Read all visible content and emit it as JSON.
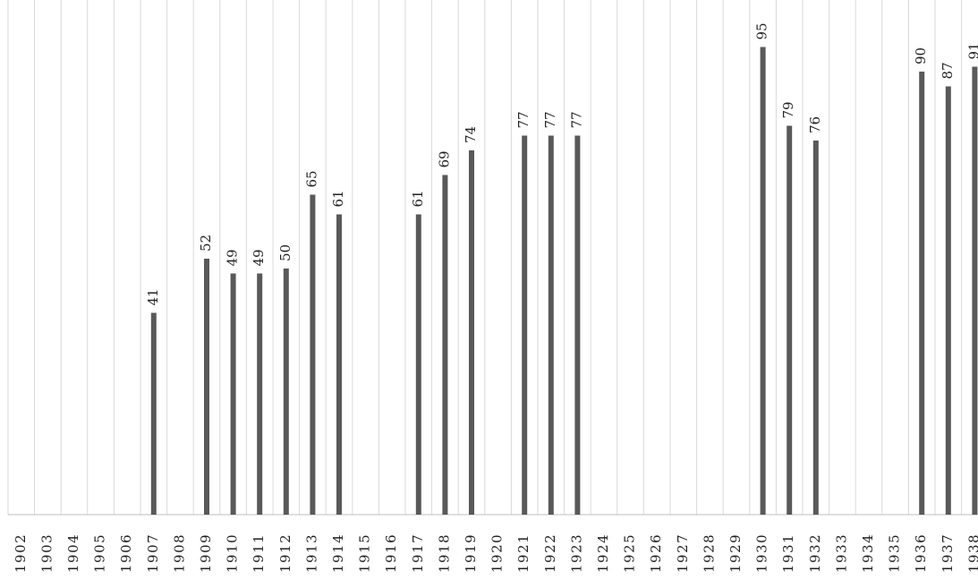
{
  "chart_data": {
    "type": "bar",
    "title": "",
    "xlabel": "",
    "ylabel": "",
    "grid": true,
    "legend": "none",
    "ylim": [
      0,
      100
    ],
    "categories": [
      "1902",
      "1903",
      "1904",
      "1905",
      "1906",
      "1907",
      "1908",
      "1909",
      "1910",
      "1911",
      "1912",
      "1913",
      "1914",
      "1915",
      "1916",
      "1917",
      "1918",
      "1919",
      "1920",
      "1921",
      "1922",
      "1923",
      "1924",
      "1925",
      "1926",
      "1927",
      "1928",
      "1929",
      "1930",
      "1931",
      "1932",
      "1933",
      "1934",
      "1935",
      "1936",
      "1937",
      "1938"
    ],
    "values": [
      null,
      null,
      null,
      null,
      null,
      41,
      null,
      52,
      49,
      49,
      50,
      65,
      61,
      null,
      null,
      61,
      69,
      74,
      null,
      77,
      77,
      77,
      null,
      null,
      null,
      null,
      null,
      null,
      95,
      79,
      76,
      null,
      null,
      null,
      90,
      87,
      91
    ],
    "colors": {
      "bar": "#595959",
      "grid": "#d9d9d9",
      "text": "#222222"
    }
  }
}
